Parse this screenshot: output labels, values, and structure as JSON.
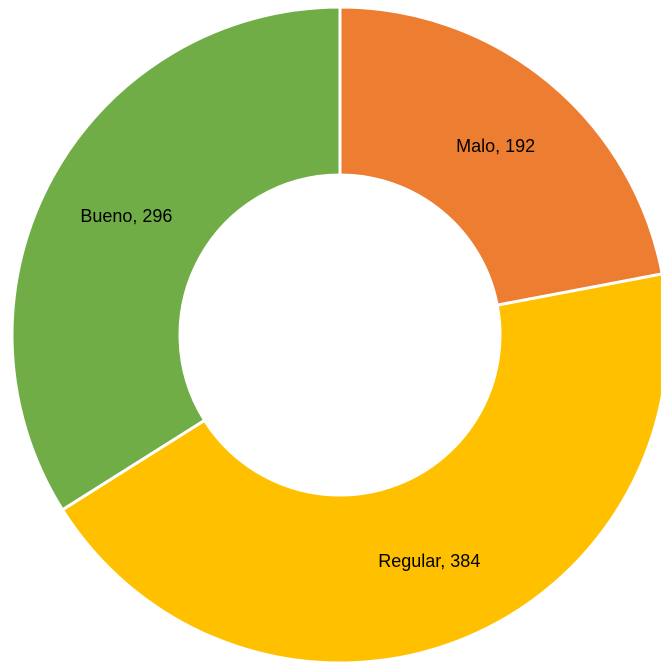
{
  "chart_data": {
    "type": "donut",
    "categories": [
      "Malo",
      "Regular",
      "Bueno"
    ],
    "values": [
      192,
      384,
      296
    ],
    "value_labels": [
      "Malo, 192",
      "Regular, 384",
      "Bueno, 296"
    ],
    "colors": [
      "#ed7d31",
      "#ffc000",
      "#70ad47"
    ]
  }
}
